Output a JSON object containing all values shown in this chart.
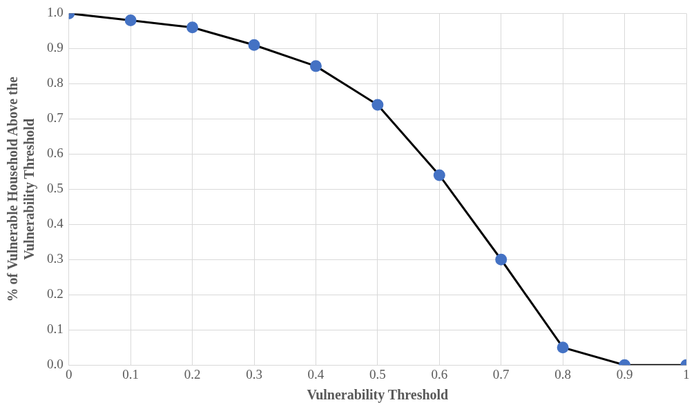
{
  "chart_data": {
    "type": "line",
    "xlabel": "Vulnerability Threshold",
    "ylabel": "% of Vulnerable Household Above the Vulnerability Threshold",
    "x": [
      0,
      0.1,
      0.2,
      0.3,
      0.4,
      0.5,
      0.6,
      0.7,
      0.8,
      0.9,
      1
    ],
    "series": [
      {
        "color": "#4472c4",
        "values": [
          1.0,
          0.98,
          0.96,
          0.91,
          0.85,
          0.74,
          0.54,
          0.3,
          0.05,
          0.0,
          0.0
        ]
      }
    ],
    "xlim": [
      0,
      1
    ],
    "xticks": [
      0,
      0.1,
      0.2,
      0.3,
      0.4,
      0.5,
      0.6,
      0.7,
      0.8,
      0.9,
      1
    ],
    "ylim": [
      0,
      1
    ],
    "yticks": [
      {
        "value": 0,
        "label": "0.0"
      },
      0.1,
      0.2,
      0.3,
      0.4,
      0.5,
      0.6,
      0.7,
      0.8,
      0.9,
      {
        "value": 1,
        "label": "1.0"
      }
    ],
    "grid": true,
    "marker": "circle",
    "line_style": "solid"
  }
}
